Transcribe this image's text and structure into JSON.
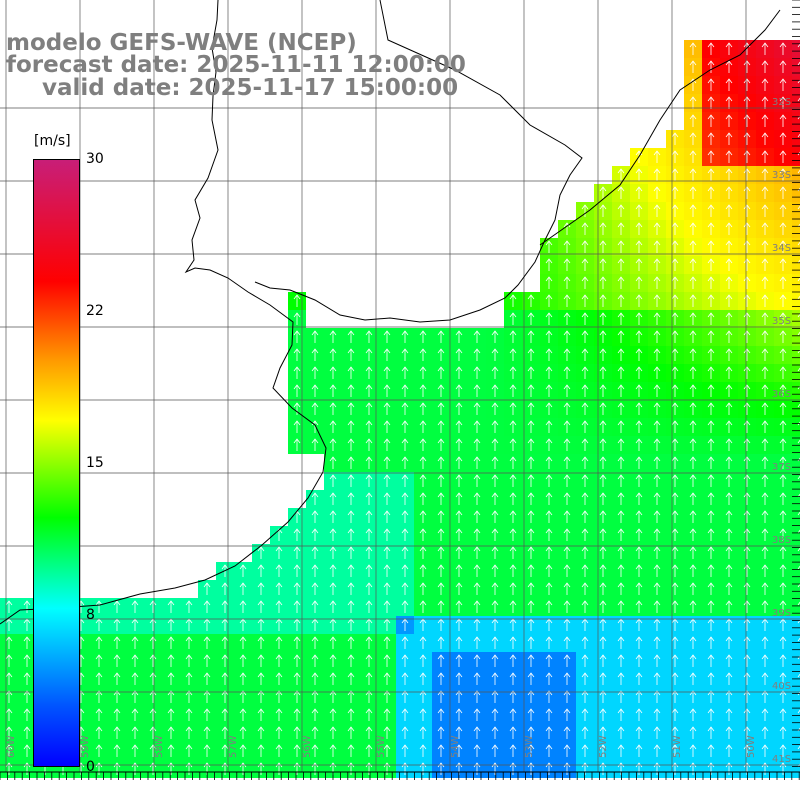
{
  "title": {
    "line1": "modelo GEFS-WAVE (NCEP)",
    "line2": "forecast date: 2025-11-11 12:00:00",
    "line3": "valid date: 2025-11-17 15:00:00"
  },
  "colorbar": {
    "unit": "[m/s]",
    "ticks": [
      {
        "label": "30",
        "value": 30
      },
      {
        "label": "22",
        "value": 22
      },
      {
        "label": "15",
        "value": 15
      },
      {
        "label": "8",
        "value": 8
      },
      {
        "label": "0",
        "value": 0
      }
    ]
  },
  "lat_labels": [
    "32S",
    "33S",
    "34S",
    "35S",
    "36S",
    "37S",
    "38S",
    "39S",
    "40S",
    "41S"
  ],
  "lon_labels": [
    "60W",
    "59W",
    "58W",
    "57W",
    "56W",
    "55W",
    "54W",
    "53W",
    "52W",
    "51W",
    "50W"
  ],
  "colors": {
    "land": "#ffffff",
    "grid": "#555555",
    "coast": "#000000",
    "arrow": "#ffffff",
    "label_gray": "#7f7f7f"
  },
  "wind_note": "arrows mostly pointing northward"
}
